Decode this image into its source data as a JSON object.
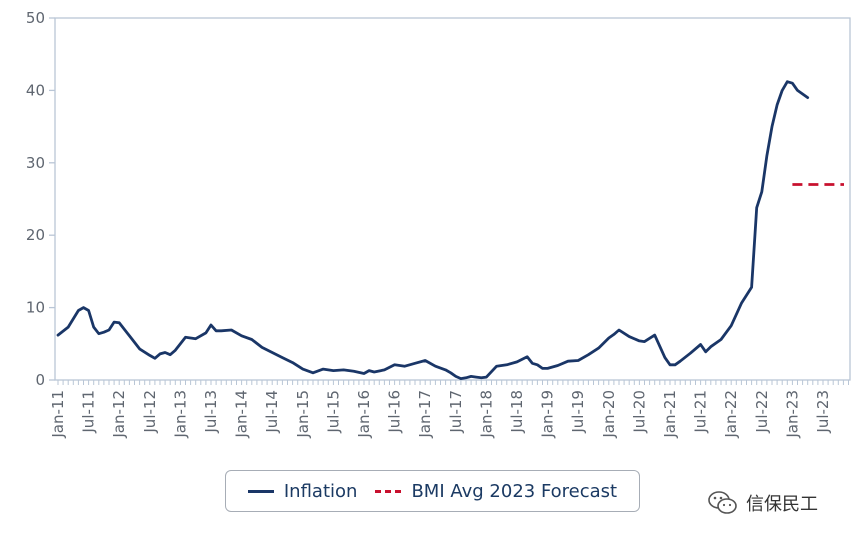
{
  "chart_data": {
    "type": "line",
    "title": "",
    "xlabel": "",
    "ylabel": "",
    "ylim": [
      0,
      50
    ],
    "y_ticks": [
      "0",
      "10",
      "20",
      "30",
      "40",
      "50"
    ],
    "x_tick_labels": [
      "Jan-11",
      "Jul-11",
      "Jan-12",
      "Jul-12",
      "Jan-13",
      "Jul-13",
      "Jan-14",
      "Jul-14",
      "Jan-15",
      "Jul-15",
      "Jan-16",
      "Jul-16",
      "Jan-17",
      "Jul-17",
      "Jan-18",
      "Jul-18",
      "Jan-19",
      "Jul-19",
      "Jan-20",
      "Jul-20",
      "Jan-21",
      "Jul-21",
      "Jan-22",
      "Jul-22",
      "Jan-23",
      "Jul-23"
    ],
    "grid": false,
    "legend_position": "bottom-center",
    "series": [
      {
        "name": "Inflation",
        "color": "#1a3667",
        "style": "solid",
        "x": [
          "2011-01",
          "2011-03",
          "2011-05",
          "2011-06",
          "2011-07",
          "2011-08",
          "2011-09",
          "2011-10",
          "2011-11",
          "2011-12",
          "2012-01",
          "2012-03",
          "2012-05",
          "2012-07",
          "2012-08",
          "2012-09",
          "2012-10",
          "2012-11",
          "2012-12",
          "2013-02",
          "2013-04",
          "2013-06",
          "2013-07",
          "2013-08",
          "2013-09",
          "2013-11",
          "2014-01",
          "2014-03",
          "2014-05",
          "2014-07",
          "2014-09",
          "2014-11",
          "2015-01",
          "2015-03",
          "2015-05",
          "2015-07",
          "2015-09",
          "2015-11",
          "2016-01",
          "2016-02",
          "2016-03",
          "2016-05",
          "2016-07",
          "2016-09",
          "2016-11",
          "2017-01",
          "2017-03",
          "2017-05",
          "2017-06",
          "2017-07",
          "2017-08",
          "2017-09",
          "2017-10",
          "2017-11",
          "2017-12",
          "2018-01",
          "2018-03",
          "2018-05",
          "2018-07",
          "2018-09",
          "2018-10",
          "2018-11",
          "2018-12",
          "2019-01",
          "2019-03",
          "2019-05",
          "2019-07",
          "2019-09",
          "2019-11",
          "2020-01",
          "2020-02",
          "2020-03",
          "2020-05",
          "2020-07",
          "2020-08",
          "2020-10",
          "2020-12",
          "2021-01",
          "2021-02",
          "2021-03",
          "2021-05",
          "2021-07",
          "2021-08",
          "2021-09",
          "2021-11",
          "2022-01",
          "2022-03",
          "2022-05",
          "2022-06",
          "2022-07",
          "2022-08",
          "2022-09",
          "2022-10",
          "2022-11",
          "2022-12",
          "2023-01",
          "2023-02",
          "2023-03",
          "2023-04"
        ],
        "values": [
          6.2,
          7.3,
          9.6,
          10.0,
          9.6,
          7.3,
          6.4,
          6.6,
          6.9,
          8.0,
          7.9,
          6.1,
          4.3,
          3.4,
          3.0,
          3.6,
          3.8,
          3.5,
          4.1,
          5.9,
          5.7,
          6.5,
          7.6,
          6.8,
          6.8,
          6.9,
          6.1,
          5.6,
          4.5,
          3.8,
          3.1,
          2.4,
          1.5,
          1.0,
          1.5,
          1.3,
          1.4,
          1.2,
          0.9,
          1.3,
          1.1,
          1.4,
          2.1,
          1.9,
          2.3,
          2.7,
          1.9,
          1.4,
          1.0,
          0.5,
          0.2,
          0.3,
          0.5,
          0.4,
          0.3,
          0.4,
          1.9,
          2.1,
          2.5,
          3.2,
          2.3,
          2.1,
          1.6,
          1.6,
          2.0,
          2.6,
          2.7,
          3.5,
          4.4,
          5.8,
          6.3,
          6.9,
          6.0,
          5.4,
          5.3,
          6.2,
          3.1,
          2.1,
          2.1,
          2.6,
          3.7,
          4.9,
          3.9,
          4.6,
          5.6,
          7.5,
          10.6,
          12.8,
          23.8,
          26.0,
          31.0,
          35.0,
          38.0,
          40.0,
          41.2,
          41.0,
          40.0,
          39.5,
          39.0
        ]
      },
      {
        "name": "BMI Avg 2023 Forecast",
        "color": "#c8102e",
        "style": "dashed",
        "x": [
          "2023-01",
          "2023-12"
        ],
        "values": [
          27.0,
          27.0
        ]
      }
    ]
  },
  "legend": {
    "items": [
      "Inflation",
      "BMI Avg 2023 Forecast"
    ]
  },
  "watermark": {
    "text": "信保民工",
    "icon": "wechat-icon"
  }
}
